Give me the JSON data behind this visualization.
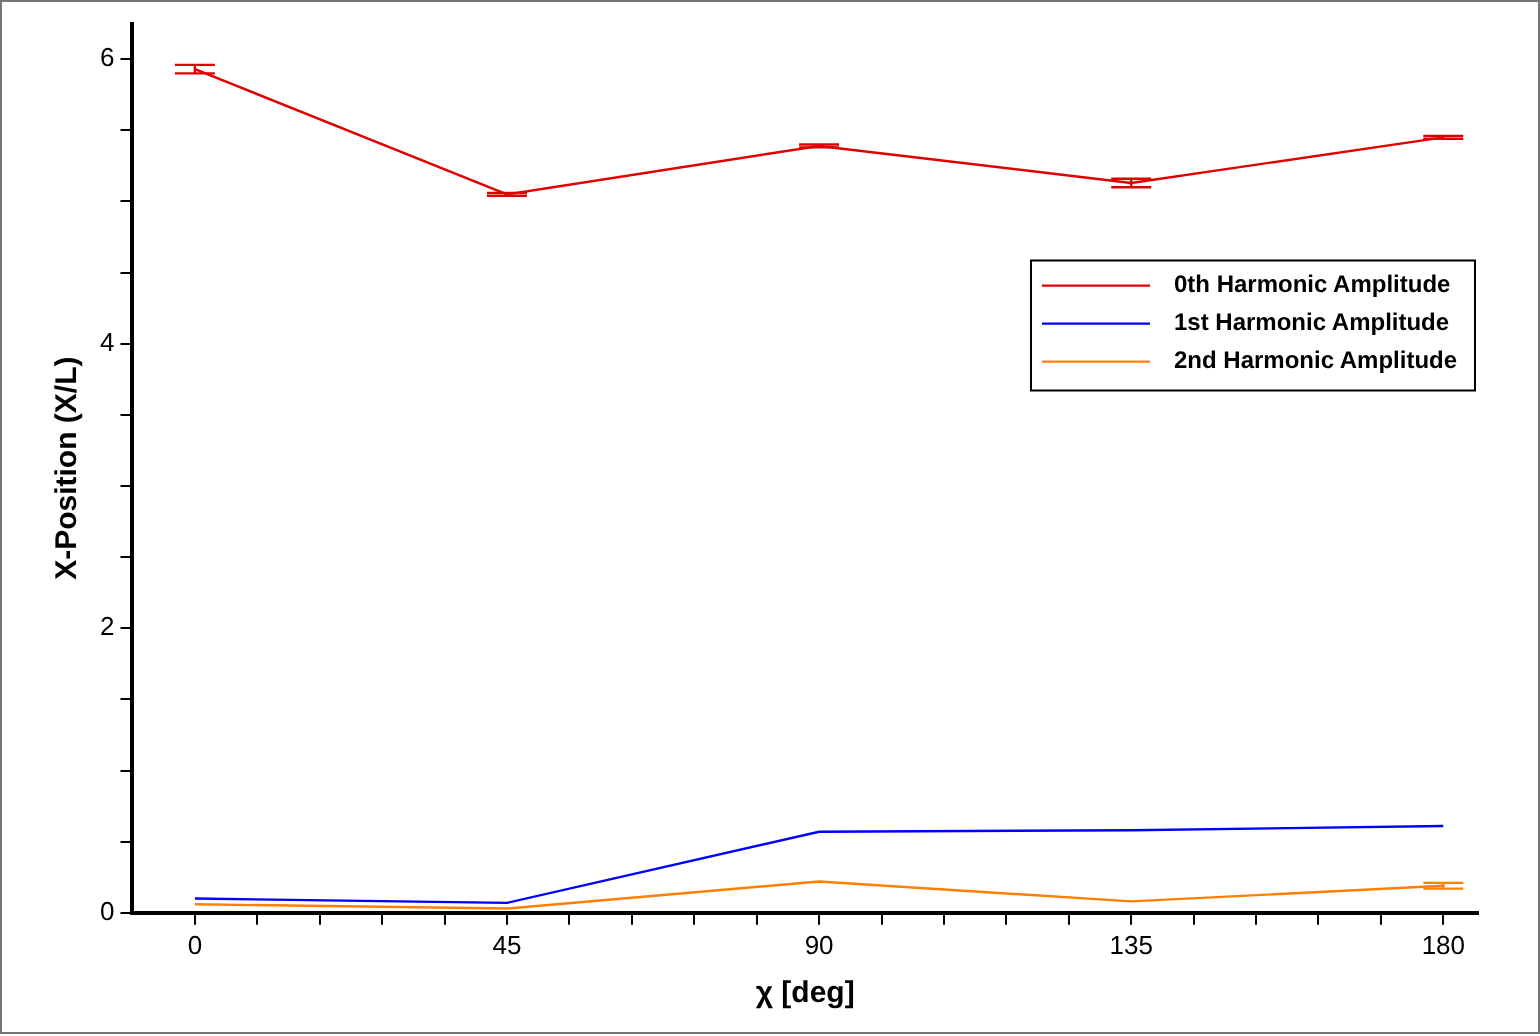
{
  "chart_data": {
    "type": "line",
    "xlabel": "χ [deg]",
    "ylabel": "X-Position (X/L)",
    "x": [
      0,
      45,
      90,
      135,
      180
    ],
    "series": [
      {
        "name": "0th Harmonic Amplitude",
        "color": "#e00000",
        "values": [
          5.93,
          5.05,
          5.39,
          5.13,
          5.45
        ],
        "errors": [
          0.03,
          0.01,
          0.01,
          0.03,
          0.01
        ]
      },
      {
        "name": "1st Harmonic Amplitude",
        "color": "#0000ff",
        "values": [
          0.1,
          0.07,
          0.57,
          0.58,
          0.61
        ]
      },
      {
        "name": "2nd Harmonic Amplitude",
        "color": "#ff8000",
        "values": [
          0.06,
          0.03,
          0.22,
          0.08,
          0.19
        ],
        "errors": [
          null,
          null,
          null,
          null,
          0.02
        ]
      }
    ],
    "xlim": [
      -9,
      185
    ],
    "ylim": [
      0,
      6.25
    ],
    "xticks": [
      0,
      {
        "value": 9,
        "label": null
      },
      {
        "value": 18,
        "label": null
      },
      {
        "value": 27,
        "label": null
      },
      {
        "value": 36,
        "label": null
      },
      45,
      {
        "value": 54,
        "label": null
      },
      {
        "value": 63,
        "label": null
      },
      {
        "value": 72,
        "label": null
      },
      {
        "value": 81,
        "label": null
      },
      90,
      {
        "value": 99,
        "label": null
      },
      {
        "value": 108,
        "label": null
      },
      {
        "value": 117,
        "label": null
      },
      {
        "value": 126,
        "label": null
      },
      135,
      {
        "value": 144,
        "label": null
      },
      {
        "value": 153,
        "label": null
      },
      {
        "value": 162,
        "label": null
      },
      {
        "value": 171,
        "label": null
      },
      180
    ],
    "yticks": [
      0,
      {
        "value": 0.5,
        "label": null
      },
      {
        "value": 1,
        "label": null
      },
      {
        "value": 1.5,
        "label": null
      },
      2,
      {
        "value": 2.5,
        "label": null
      },
      {
        "value": 3,
        "label": null
      },
      {
        "value": 3.5,
        "label": null
      },
      4,
      {
        "value": 4.5,
        "label": null
      },
      {
        "value": 5,
        "label": null
      },
      {
        "value": 5.5,
        "label": null
      },
      6
    ],
    "legend": "top right",
    "grid": false,
    "marker": "none",
    "line_style": "solid"
  }
}
